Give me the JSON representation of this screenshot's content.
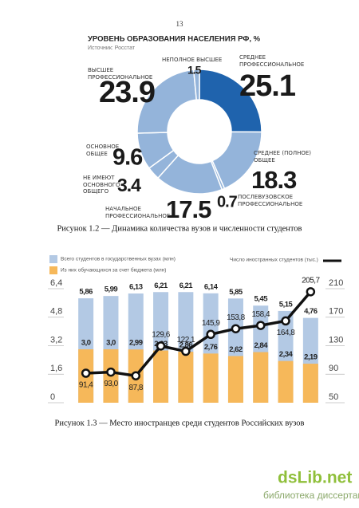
{
  "page_number": "13",
  "chart_data": [
    {
      "type": "pie",
      "donut": true,
      "title": "УРОВЕНЬ ОБРАЗОВАНИЯ НАСЕЛЕНИЯ РФ, %",
      "subtitle": "Источник: Росстат",
      "categories": [
        "СРЕДНЕЕ ПРОФЕССИОНАЛЬНОЕ",
        "СРЕДНЕЕ (ПОЛНОЕ) ОБЩЕЕ",
        "ПОСЛЕВУЗОВСКОЕ ПРОФЕССИОНАЛЬНОЕ",
        "НАЧАЛЬНОЕ ПРОФЕССИОНАЛЬНОЕ",
        "НЕ ИМЕЮТ ОСНОВНОГО ОБЩЕГО",
        "ОСНОВНОЕ ОБЩЕЕ",
        "ВЫСШЕЕ ПРОФЕССИОНАЛЬНОЕ",
        "НЕПОЛНОЕ ВЫСШЕЕ"
      ],
      "values": [
        25.1,
        18.3,
        0.7,
        17.5,
        3.4,
        9.6,
        23.9,
        1.5
      ],
      "colors": [
        "#1f63ad",
        "#94b4da",
        "#94b4da",
        "#94b4da",
        "#94b4da",
        "#94b4da",
        "#94b4da",
        "#94b4da"
      ]
    },
    {
      "type": "bar",
      "categories": [
        null,
        null,
        null,
        null,
        null,
        null,
        null,
        null,
        null,
        null
      ],
      "series": [
        {
          "name": "Всего студентов в государственных вузах (млн)",
          "color": "#b3c9e4",
          "values": [
            5.86,
            5.99,
            6.13,
            6.21,
            6.21,
            6.14,
            5.85,
            5.45,
            5.15,
            4.76
          ],
          "value_labels": [
            "5,86",
            "5,99",
            "6,13",
            "6,21",
            "6,21",
            "6,14",
            "5,85",
            "5,45",
            "5,15",
            "4,76"
          ]
        },
        {
          "name": "Из них обучающихся за счет бюджета (млн)",
          "color": "#f6b85a",
          "values": [
            3.0,
            3.0,
            2.99,
            2.93,
            2.86,
            2.76,
            2.62,
            2.84,
            2.34,
            2.19
          ],
          "value_labels": [
            "3,0",
            "3,0",
            "2,99",
            "2,93",
            "2,86",
            "2,76",
            "2,62",
            "2,84",
            "2,34",
            "2,19"
          ]
        },
        {
          "name": "Число иностранных студентов (тыс.)",
          "color": "#111111",
          "type": "line",
          "axis": "y2",
          "values": [
            91.4,
            93.0,
            87.8,
            129.6,
            122.1,
            145.9,
            153.8,
            158.4,
            164.8,
            205.7
          ],
          "value_labels": [
            "91,4",
            "93,0",
            "87,8",
            "129,6",
            "122,1",
            "145,9",
            "153,8",
            "158,4",
            "164,8",
            "205,7"
          ]
        }
      ],
      "ylim": [
        0,
        6.4
      ],
      "yticks": [
        0,
        {
          "value": 1.6,
          "label": "1,6"
        },
        {
          "value": 3.2,
          "label": "3,2"
        },
        {
          "value": 4.8,
          "label": "4,8"
        },
        {
          "value": 6.4,
          "label": "6,4"
        }
      ],
      "y2lim": [
        50,
        210
      ],
      "y2ticks": [
        50,
        90,
        130,
        170,
        210
      ]
    }
  ],
  "captions": [
    "Рисунок 1.2 — Динамика количества вузов и численности студентов",
    "Рисунок 1.3 — Место иностранцев среди студентов Российских вузов"
  ],
  "watermark": {
    "logo": "dsLib.net",
    "text": "библиотека диссертаций"
  }
}
